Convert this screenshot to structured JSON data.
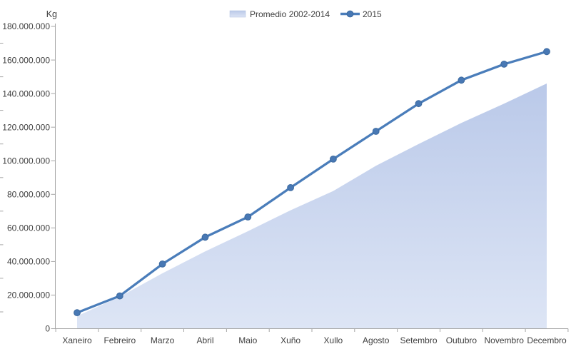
{
  "chart_data": {
    "type": "area+line",
    "title": "",
    "unit_label": "Kg",
    "categories": [
      "Xaneiro",
      "Febreiro",
      "Marzo",
      "Abril",
      "Maio",
      "Xuño",
      "Xullo",
      "Agosto",
      "Setembro",
      "Outubro",
      "Novembro",
      "Decembro"
    ],
    "series": [
      {
        "name": "Promedio 2002-2014",
        "type": "area",
        "values": [
          7500000,
          19000000,
          33000000,
          46000000,
          58000000,
          70500000,
          82000000,
          97000000,
          110000000,
          122500000,
          134000000,
          146000000
        ]
      },
      {
        "name": "2015",
        "type": "line",
        "marker": "circle",
        "values": [
          9500000,
          19500000,
          38500000,
          54500000,
          66500000,
          84000000,
          101000000,
          117500000,
          134000000,
          148000000,
          157500000,
          165000000
        ]
      }
    ],
    "y_axis": {
      "min": 0,
      "max": 180000000,
      "major_step": 20000000,
      "minor_step": 10000000,
      "tick_format": "dot-thousands"
    },
    "x_axis": {
      "tick_marks": "between-categories"
    },
    "legend_position": "top-center",
    "grid": false
  },
  "legend": {
    "items": [
      {
        "label": "Promedio 2002-2014",
        "swatch": "area"
      },
      {
        "label": "2015",
        "swatch": "line-marker"
      }
    ]
  },
  "colors": {
    "line": "#4a7dba",
    "marker_fill": "#4878b4",
    "marker_stroke": "#3b699f",
    "area_top": "#bac9e9",
    "area_bottom": "#dde5f5",
    "axis": "#a6a6a6",
    "text": "#404040",
    "background": "#ffffff"
  }
}
